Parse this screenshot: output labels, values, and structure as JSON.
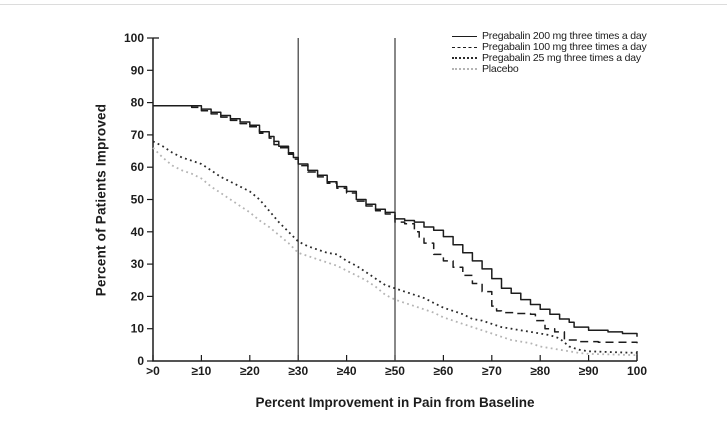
{
  "figure": {
    "background": "#ffffff",
    "axis_color": "#1c1c1c",
    "reference_line_color": "#3a3a3a"
  },
  "chart_data": {
    "type": "line",
    "title": "",
    "xlabel": "Percent Improvement in Pain from Baseline",
    "ylabel": "Percent of Patients Improved",
    "xlim": [
      0,
      100
    ],
    "ylim": [
      0,
      100
    ],
    "grid": false,
    "legend_position": "top-right",
    "x_tick_values": [
      0,
      10,
      20,
      30,
      40,
      50,
      60,
      70,
      80,
      90,
      100
    ],
    "x_tick_labels": [
      ">0",
      "≥10",
      "≥20",
      "≥30",
      "≥40",
      "≥50",
      "≥60",
      "≥70",
      "≥80",
      "≥90",
      "100"
    ],
    "y_tick_values": [
      0,
      10,
      20,
      30,
      40,
      50,
      60,
      70,
      80,
      90,
      100
    ],
    "y_tick_labels": [
      "0",
      "10",
      "20",
      "30",
      "40",
      "50",
      "60",
      "70",
      "80",
      "90",
      "100"
    ],
    "reference_lines_x": [
      30,
      50
    ],
    "series": [
      {
        "name": "Pregabalin 200 mg three times a day",
        "style": "solid",
        "interp": "step",
        "color": "#1c1c1c",
        "points": [
          [
            0,
            79
          ],
          [
            8,
            79
          ],
          [
            10,
            78
          ],
          [
            12,
            77
          ],
          [
            14,
            76
          ],
          [
            16,
            75
          ],
          [
            18,
            74
          ],
          [
            20,
            73
          ],
          [
            22,
            71
          ],
          [
            24,
            69.5
          ],
          [
            25,
            68
          ],
          [
            26,
            66.5
          ],
          [
            28,
            64.5
          ],
          [
            29,
            63
          ],
          [
            30,
            61
          ],
          [
            32,
            59
          ],
          [
            34,
            57.5
          ],
          [
            36,
            55.5
          ],
          [
            38,
            54
          ],
          [
            40,
            52.5
          ],
          [
            42,
            50
          ],
          [
            44,
            48.5
          ],
          [
            46,
            47
          ],
          [
            48,
            46
          ],
          [
            50,
            44
          ],
          [
            52,
            43.5
          ],
          [
            54,
            43
          ],
          [
            56,
            41.5
          ],
          [
            58,
            40.5
          ],
          [
            60,
            38.5
          ],
          [
            62,
            36
          ],
          [
            64,
            33.5
          ],
          [
            66,
            31
          ],
          [
            68,
            28.5
          ],
          [
            70,
            25.5
          ],
          [
            72,
            22.5
          ],
          [
            74,
            21
          ],
          [
            76,
            19
          ],
          [
            78,
            17.5
          ],
          [
            80,
            16
          ],
          [
            82,
            14.5
          ],
          [
            84,
            13
          ],
          [
            86,
            12
          ],
          [
            87,
            10.5
          ],
          [
            90,
            9.5
          ],
          [
            94,
            9
          ],
          [
            97,
            8.5
          ],
          [
            100,
            7.5
          ]
        ]
      },
      {
        "name": "Pregabalin 100 mg three times a day",
        "style": "dashed",
        "interp": "step",
        "color": "#1c1c1c",
        "points": [
          [
            0,
            79
          ],
          [
            8,
            78.5
          ],
          [
            10,
            77.5
          ],
          [
            12,
            76.5
          ],
          [
            14,
            75.5
          ],
          [
            16,
            74.5
          ],
          [
            18,
            73.5
          ],
          [
            20,
            72.5
          ],
          [
            22,
            70.5
          ],
          [
            24,
            69
          ],
          [
            25,
            67
          ],
          [
            26,
            66
          ],
          [
            28,
            64
          ],
          [
            29,
            62.5
          ],
          [
            30,
            60.5
          ],
          [
            32,
            58.5
          ],
          [
            34,
            57
          ],
          [
            36,
            55
          ],
          [
            38,
            53.5
          ],
          [
            40,
            52
          ],
          [
            42,
            49.5
          ],
          [
            44,
            48
          ],
          [
            46,
            46.5
          ],
          [
            48,
            45.5
          ],
          [
            50,
            43
          ],
          [
            52,
            42.5
          ],
          [
            54,
            40
          ],
          [
            55,
            38
          ],
          [
            56,
            36.5
          ],
          [
            58,
            33
          ],
          [
            60,
            31
          ],
          [
            62,
            29
          ],
          [
            64,
            26.5
          ],
          [
            66,
            24
          ],
          [
            68,
            21.5
          ],
          [
            70,
            17
          ],
          [
            71,
            15.5
          ],
          [
            72,
            15
          ],
          [
            75,
            14.7
          ],
          [
            78,
            14.5
          ],
          [
            79,
            12.5
          ],
          [
            81,
            10
          ],
          [
            83,
            9
          ],
          [
            85,
            6.5
          ],
          [
            88,
            6
          ],
          [
            92,
            5.8
          ],
          [
            100,
            5.5
          ]
        ]
      },
      {
        "name": "Pregabalin 25 mg three times a day",
        "style": "dotted",
        "interp": "linear",
        "color": "#2a2a2a",
        "points": [
          [
            0,
            68
          ],
          [
            2,
            66.5
          ],
          [
            4,
            64.5
          ],
          [
            6,
            63
          ],
          [
            8,
            62
          ],
          [
            10,
            61
          ],
          [
            12,
            59
          ],
          [
            14,
            57
          ],
          [
            16,
            55.5
          ],
          [
            18,
            54
          ],
          [
            20,
            52.5
          ],
          [
            22,
            50
          ],
          [
            24,
            46.5
          ],
          [
            26,
            43
          ],
          [
            28,
            40
          ],
          [
            30,
            37
          ],
          [
            32,
            35.5
          ],
          [
            34,
            34.5
          ],
          [
            36,
            33.5
          ],
          [
            38,
            33
          ],
          [
            40,
            31
          ],
          [
            42,
            29.5
          ],
          [
            44,
            27.5
          ],
          [
            46,
            25.5
          ],
          [
            48,
            23.5
          ],
          [
            50,
            22.5
          ],
          [
            52,
            21.5
          ],
          [
            54,
            20.5
          ],
          [
            56,
            19.5
          ],
          [
            58,
            18
          ],
          [
            60,
            16.5
          ],
          [
            62,
            15.5
          ],
          [
            64,
            14.5
          ],
          [
            66,
            13
          ],
          [
            68,
            12.5
          ],
          [
            70,
            11.5
          ],
          [
            72,
            10.5
          ],
          [
            74,
            10
          ],
          [
            76,
            9.5
          ],
          [
            78,
            9
          ],
          [
            80,
            8.5
          ],
          [
            82,
            8
          ],
          [
            84,
            7
          ],
          [
            86,
            4.5
          ],
          [
            88,
            3.5
          ],
          [
            90,
            3
          ],
          [
            94,
            2.8
          ],
          [
            100,
            2.5
          ]
        ]
      },
      {
        "name": "Placebo",
        "style": "dotted",
        "interp": "linear",
        "color": "#b4b4b4",
        "points": [
          [
            0,
            66
          ],
          [
            2,
            63
          ],
          [
            4,
            60.5
          ],
          [
            6,
            59
          ],
          [
            8,
            58
          ],
          [
            10,
            56.5
          ],
          [
            12,
            54
          ],
          [
            14,
            52
          ],
          [
            16,
            50
          ],
          [
            18,
            48
          ],
          [
            20,
            46
          ],
          [
            22,
            43.5
          ],
          [
            24,
            41.5
          ],
          [
            26,
            39
          ],
          [
            28,
            36.5
          ],
          [
            30,
            33.5
          ],
          [
            32,
            32.5
          ],
          [
            34,
            31.5
          ],
          [
            36,
            30.5
          ],
          [
            38,
            29.5
          ],
          [
            40,
            28
          ],
          [
            42,
            26.5
          ],
          [
            44,
            25
          ],
          [
            46,
            23
          ],
          [
            48,
            20.5
          ],
          [
            50,
            19
          ],
          [
            52,
            18
          ],
          [
            54,
            17
          ],
          [
            56,
            16
          ],
          [
            58,
            15
          ],
          [
            60,
            13.5
          ],
          [
            62,
            12.5
          ],
          [
            64,
            11.5
          ],
          [
            66,
            10.5
          ],
          [
            68,
            9.5
          ],
          [
            70,
            8.5
          ],
          [
            72,
            7.5
          ],
          [
            74,
            6.5
          ],
          [
            76,
            6
          ],
          [
            78,
            5.5
          ],
          [
            80,
            4.5
          ],
          [
            82,
            4
          ],
          [
            84,
            3.5
          ],
          [
            86,
            3
          ],
          [
            88,
            2.5
          ],
          [
            90,
            2.2
          ],
          [
            95,
            2
          ],
          [
            100,
            1.8
          ]
        ]
      }
    ]
  }
}
